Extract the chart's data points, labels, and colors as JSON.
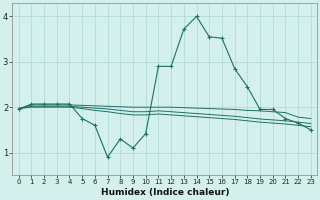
{
  "xlabel": "Humidex (Indice chaleur)",
  "xlim": [
    -0.5,
    23.5
  ],
  "ylim": [
    0.5,
    4.3
  ],
  "yticks": [
    1,
    2,
    3,
    4
  ],
  "xticks": [
    0,
    1,
    2,
    3,
    4,
    5,
    6,
    7,
    8,
    9,
    10,
    11,
    12,
    13,
    14,
    15,
    16,
    17,
    18,
    19,
    20,
    21,
    22,
    23
  ],
  "bg_color": "#d4f0ec",
  "grid_color": "#aed8d2",
  "line_color": "#1e7068",
  "series": [
    {
      "x": [
        0,
        1,
        2,
        3,
        4,
        5,
        6,
        7,
        8,
        9,
        10,
        11,
        12,
        13,
        14,
        15,
        16,
        17,
        18,
        19,
        20,
        21,
        22,
        23
      ],
      "y": [
        1.95,
        2.07,
        2.07,
        2.07,
        2.07,
        1.75,
        1.6,
        0.9,
        1.3,
        1.1,
        1.42,
        2.9,
        2.9,
        3.72,
        4.0,
        3.55,
        3.52,
        2.85,
        2.45,
        1.95,
        1.95,
        1.75,
        1.65,
        1.5
      ],
      "marker": true
    },
    {
      "x": [
        0,
        1,
        2,
        3,
        4,
        5,
        6,
        7,
        8,
        9,
        10,
        11,
        12,
        13,
        14,
        15,
        16,
        17,
        18,
        19,
        20,
        21,
        22,
        23
      ],
      "y": [
        1.97,
        2.05,
        2.05,
        2.05,
        2.05,
        2.04,
        2.03,
        2.02,
        2.01,
        2.0,
        2.0,
        2.0,
        2.0,
        1.99,
        1.98,
        1.97,
        1.96,
        1.95,
        1.93,
        1.92,
        1.9,
        1.88,
        1.78,
        1.75
      ],
      "marker": false
    },
    {
      "x": [
        0,
        1,
        2,
        3,
        4,
        5,
        6,
        7,
        8,
        9,
        10,
        11,
        12,
        13,
        14,
        15,
        16,
        17,
        18,
        19,
        20,
        21,
        22,
        23
      ],
      "y": [
        1.97,
        2.02,
        2.02,
        2.02,
        2.02,
        2.0,
        1.98,
        1.96,
        1.93,
        1.9,
        1.9,
        1.92,
        1.9,
        1.88,
        1.86,
        1.84,
        1.82,
        1.8,
        1.77,
        1.74,
        1.72,
        1.7,
        1.67,
        1.64
      ],
      "marker": false
    },
    {
      "x": [
        0,
        1,
        2,
        3,
        4,
        5,
        6,
        7,
        8,
        9,
        10,
        11,
        12,
        13,
        14,
        15,
        16,
        17,
        18,
        19,
        20,
        21,
        22,
        23
      ],
      "y": [
        1.97,
        2.0,
        2.0,
        2.0,
        2.0,
        1.97,
        1.93,
        1.9,
        1.86,
        1.83,
        1.83,
        1.85,
        1.83,
        1.81,
        1.79,
        1.77,
        1.75,
        1.73,
        1.7,
        1.67,
        1.65,
        1.63,
        1.6,
        1.57
      ],
      "marker": false
    }
  ]
}
